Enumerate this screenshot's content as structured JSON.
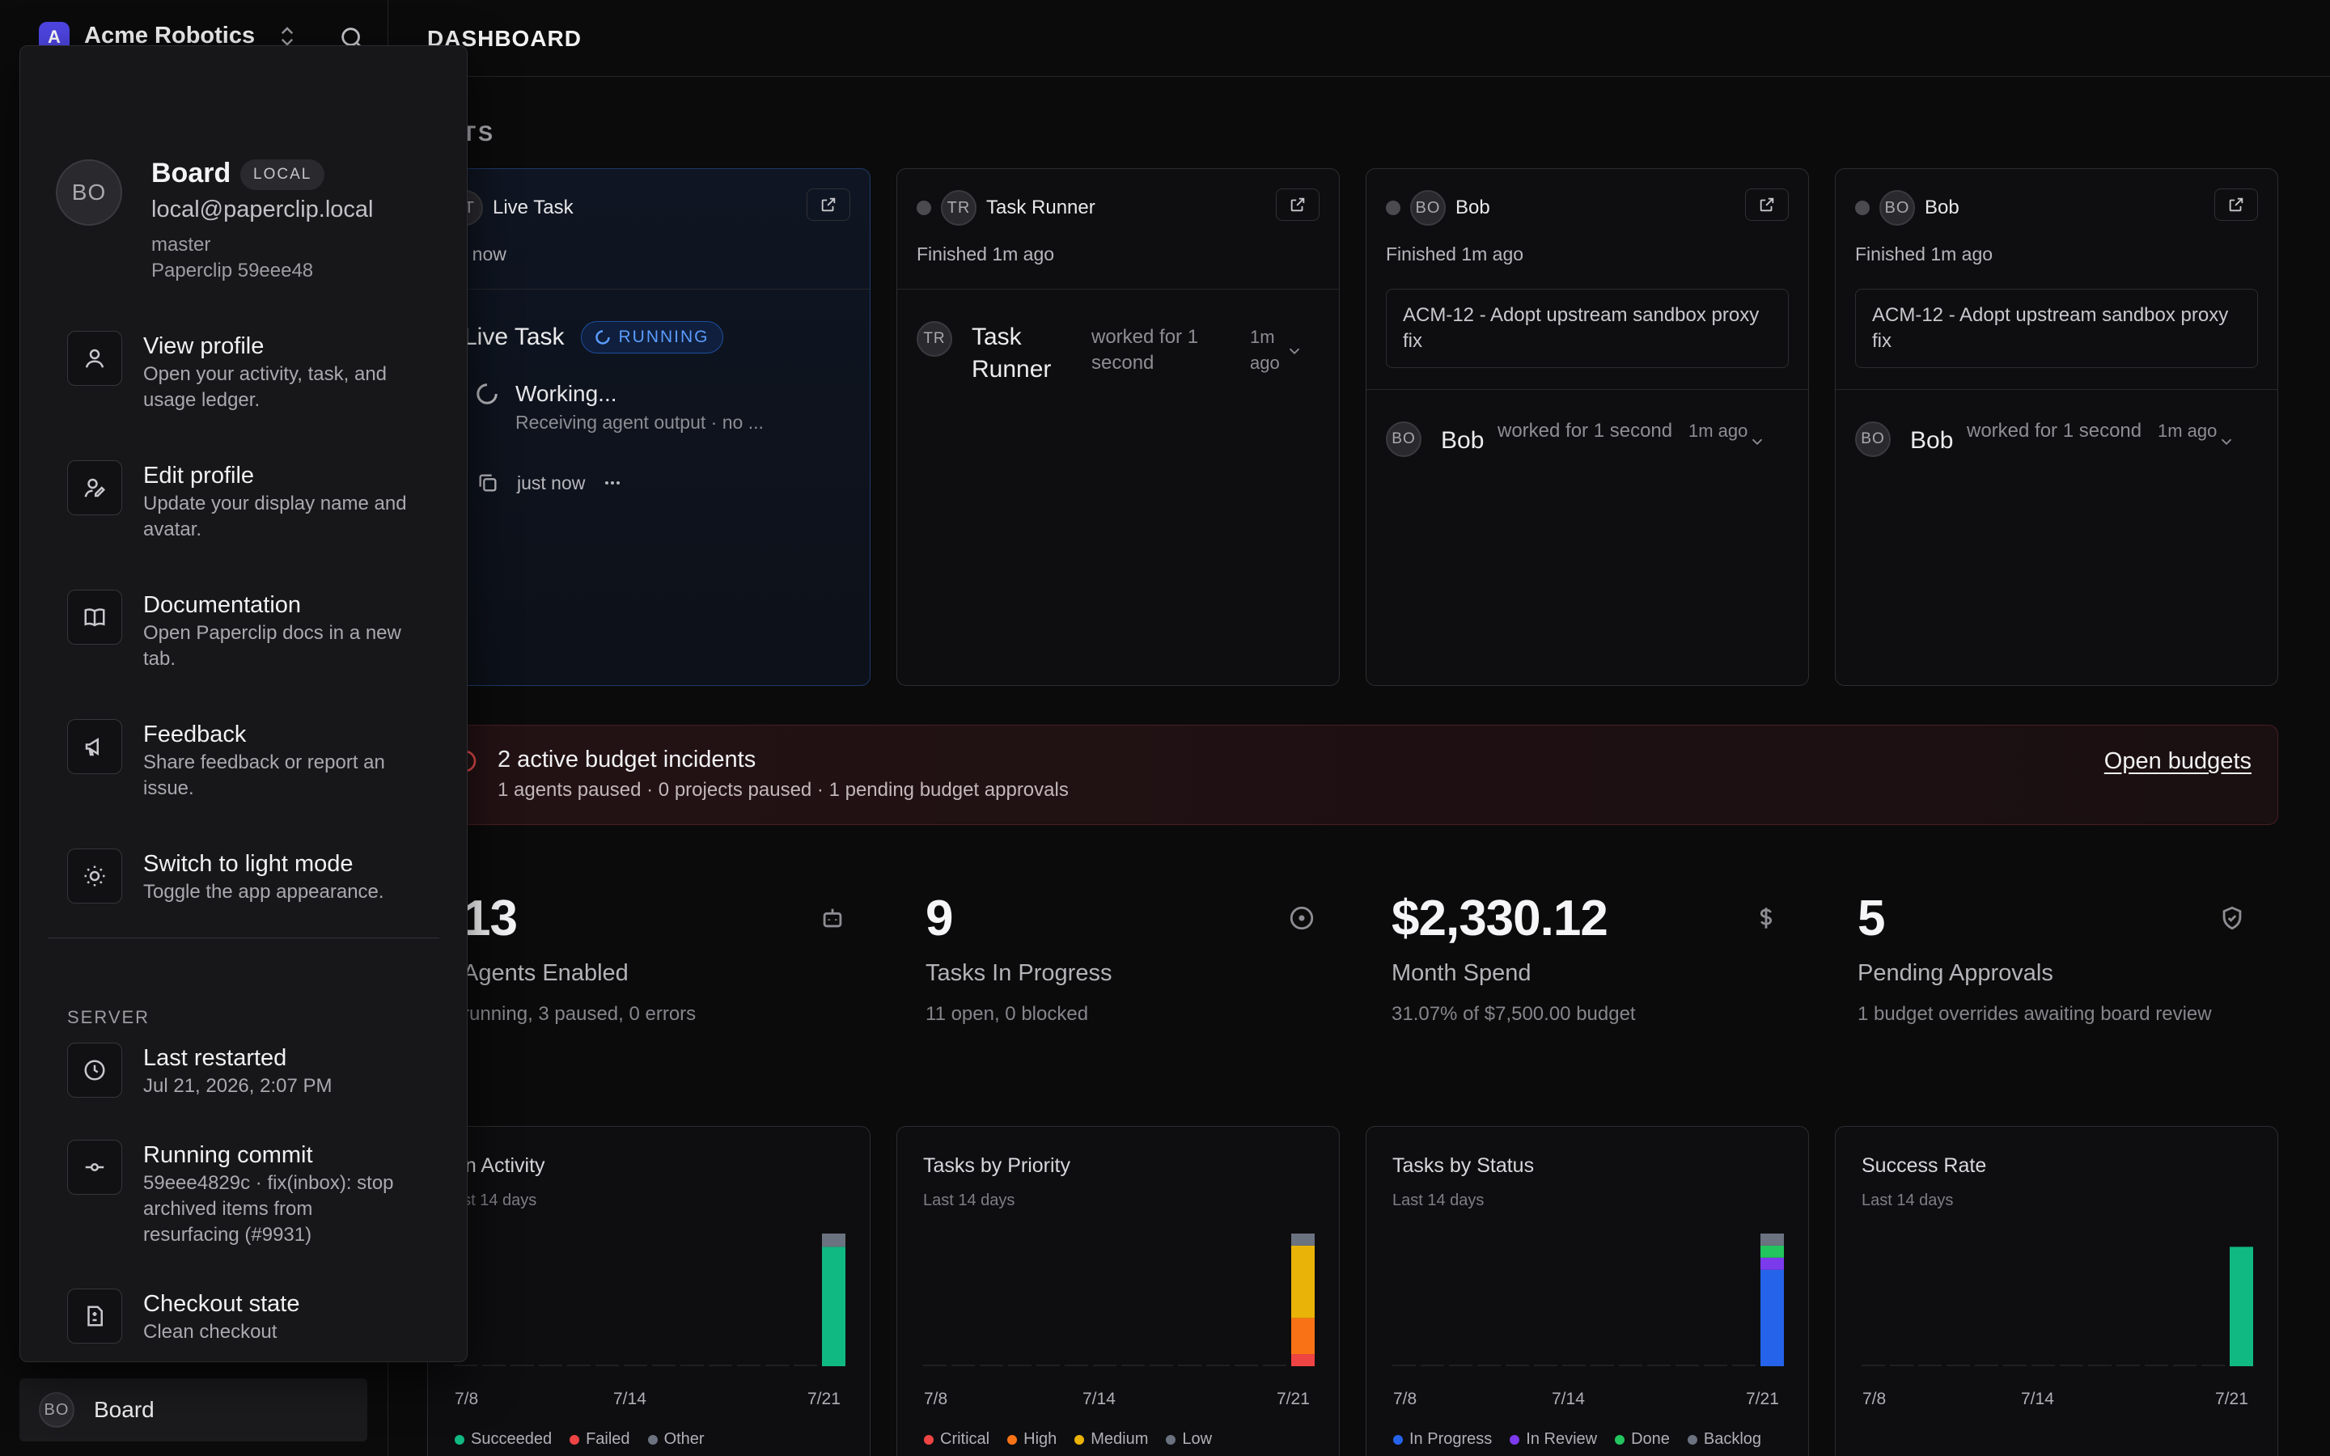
{
  "sidebar": {
    "org_initial": "A",
    "org_name": "Acme Robotics",
    "footer_initials": "BO",
    "footer_label": "Board"
  },
  "header": {
    "title": "DASHBOARD"
  },
  "agents_heading": "ENTS",
  "agent_cards": [
    {
      "initials": "LT",
      "name": "Live Task",
      "status_text": "ve now",
      "run_initials": "T",
      "run_name": "Live Task",
      "run_badge": "RUNNING",
      "working": "Working...",
      "receiving": "Receiving agent output · no ...",
      "time": "just now"
    },
    {
      "initials": "TR",
      "name": "Task Runner",
      "status_text": "Finished 1m ago",
      "run_initials": "TR",
      "run_name": "Task Runner",
      "worked": "worked for 1 second",
      "ago": "1m ago"
    },
    {
      "initials": "BO",
      "name": "Bob",
      "status_text": "Finished 1m ago",
      "issue": "ACM-12 - Adopt upstream sandbox proxy fix",
      "run_initials": "BO",
      "run_name": "Bob",
      "worked": "worked for 1 second",
      "ago": "1m ago"
    },
    {
      "initials": "BO",
      "name": "Bob",
      "status_text": "Finished 1m ago",
      "issue": "ACM-12 - Adopt upstream sandbox proxy fix",
      "run_initials": "BO",
      "run_name": "Bob",
      "worked": "worked for 1 second",
      "ago": "1m ago"
    }
  ],
  "budget": {
    "title": "2 active budget incidents",
    "subtitle": "1 agents paused · 0 projects paused · 1 pending budget approvals",
    "link": "Open budgets",
    "color": "#e24a4a"
  },
  "metrics": [
    {
      "value": "13",
      "label": "Agents Enabled",
      "sub": " running, 3 paused, 0 errors",
      "icon": "robot-icon"
    },
    {
      "value": "9",
      "label": "Tasks In Progress",
      "sub": "11 open, 0 blocked",
      "icon": "circle-dot-icon"
    },
    {
      "value": "$2,330.12",
      "label": "Month Spend",
      "sub": "31.07% of $7,500.00 budget",
      "icon": "dollar-icon"
    },
    {
      "value": "5",
      "label": "Pending Approvals",
      "sub": "1 budget overrides awaiting board review",
      "icon": "shield-check-icon"
    }
  ],
  "chart_data": [
    {
      "type": "bar",
      "title": "un Activity",
      "subtitle": "ast 14 days",
      "x_ticks": [
        "7/8",
        "7/14",
        "7/21"
      ],
      "days": 14,
      "series": [
        {
          "name": "Succeeded",
          "color": "#10b981",
          "values": [
            0,
            0,
            0,
            0,
            0,
            0,
            0,
            0,
            0,
            0,
            0,
            0,
            0,
            9
          ]
        },
        {
          "name": "Failed",
          "color": "#ef4444",
          "values": [
            0,
            0,
            0,
            0,
            0,
            0,
            0,
            0,
            0,
            0,
            0,
            0,
            0,
            0
          ]
        },
        {
          "name": "Other",
          "color": "#6b7280",
          "values": [
            0,
            0,
            0,
            0,
            0,
            0,
            0,
            0,
            0,
            0,
            0,
            0,
            0,
            1
          ]
        }
      ],
      "ymax": 10
    },
    {
      "type": "bar",
      "title": "Tasks by Priority",
      "subtitle": "Last 14 days",
      "x_ticks": [
        "7/8",
        "7/14",
        "7/21"
      ],
      "days": 14,
      "series": [
        {
          "name": "Critical",
          "color": "#ef4444",
          "values": [
            0,
            0,
            0,
            0,
            0,
            0,
            0,
            0,
            0,
            0,
            0,
            0,
            0,
            1
          ]
        },
        {
          "name": "High",
          "color": "#f97316",
          "values": [
            0,
            0,
            0,
            0,
            0,
            0,
            0,
            0,
            0,
            0,
            0,
            0,
            0,
            3
          ]
        },
        {
          "name": "Medium",
          "color": "#eab308",
          "values": [
            0,
            0,
            0,
            0,
            0,
            0,
            0,
            0,
            0,
            0,
            0,
            0,
            0,
            6
          ]
        },
        {
          "name": "Low",
          "color": "#6b7280",
          "values": [
            0,
            0,
            0,
            0,
            0,
            0,
            0,
            0,
            0,
            0,
            0,
            0,
            0,
            1
          ]
        }
      ],
      "ymax": 11
    },
    {
      "type": "bar",
      "title": "Tasks by Status",
      "subtitle": "Last 14 days",
      "x_ticks": [
        "7/8",
        "7/14",
        "7/21"
      ],
      "days": 14,
      "series": [
        {
          "name": "In Progress",
          "color": "#2563eb",
          "values": [
            0,
            0,
            0,
            0,
            0,
            0,
            0,
            0,
            0,
            0,
            0,
            0,
            0,
            8
          ]
        },
        {
          "name": "In Review",
          "color": "#7c3aed",
          "values": [
            0,
            0,
            0,
            0,
            0,
            0,
            0,
            0,
            0,
            0,
            0,
            0,
            0,
            1
          ]
        },
        {
          "name": "Done",
          "color": "#22c55e",
          "values": [
            0,
            0,
            0,
            0,
            0,
            0,
            0,
            0,
            0,
            0,
            0,
            0,
            0,
            1
          ]
        },
        {
          "name": "Backlog",
          "color": "#6b7280",
          "values": [
            0,
            0,
            0,
            0,
            0,
            0,
            0,
            0,
            0,
            0,
            0,
            0,
            0,
            1
          ]
        }
      ],
      "ymax": 11
    },
    {
      "type": "bar",
      "title": "Success Rate",
      "subtitle": "Last 14 days",
      "x_ticks": [
        "7/8",
        "7/14",
        "7/21"
      ],
      "days": 14,
      "series": [
        {
          "name": "",
          "color": "#10b981",
          "values": [
            0,
            0,
            0,
            0,
            0,
            0,
            0,
            0,
            0,
            0,
            0,
            0,
            0,
            90
          ]
        }
      ],
      "ymax": 100
    }
  ],
  "profile_menu": {
    "initials": "BO",
    "name": "Board",
    "badge": "LOCAL",
    "email": "local@paperclip.local",
    "branch": "master",
    "version": "Paperclip 59eee48",
    "items": [
      {
        "title": "View profile",
        "desc": "Open your activity, task, and usage ledger.",
        "icon": "user-icon"
      },
      {
        "title": "Edit profile",
        "desc": "Update your display name and avatar.",
        "icon": "user-edit-icon"
      },
      {
        "title": "Documentation",
        "desc": "Open Paperclip docs in a new tab.",
        "icon": "book-icon"
      },
      {
        "title": "Feedback",
        "desc": "Share feedback or report an issue.",
        "icon": "megaphone-icon"
      },
      {
        "title": "Switch to light mode",
        "desc": "Toggle the app appearance.",
        "icon": "sun-icon"
      }
    ],
    "server_heading": "SERVER",
    "server_items": [
      {
        "title": "Last restarted",
        "desc": "Jul 21, 2026, 2:07 PM",
        "icon": "clock-icon"
      },
      {
        "title": "Running commit",
        "desc": "59eee4829c · fix(inbox): stop archived items from resurfacing (#9931)",
        "icon": "git-commit-icon"
      },
      {
        "title": "Checkout state",
        "desc": "Clean checkout",
        "icon": "file-diff-icon"
      }
    ]
  }
}
